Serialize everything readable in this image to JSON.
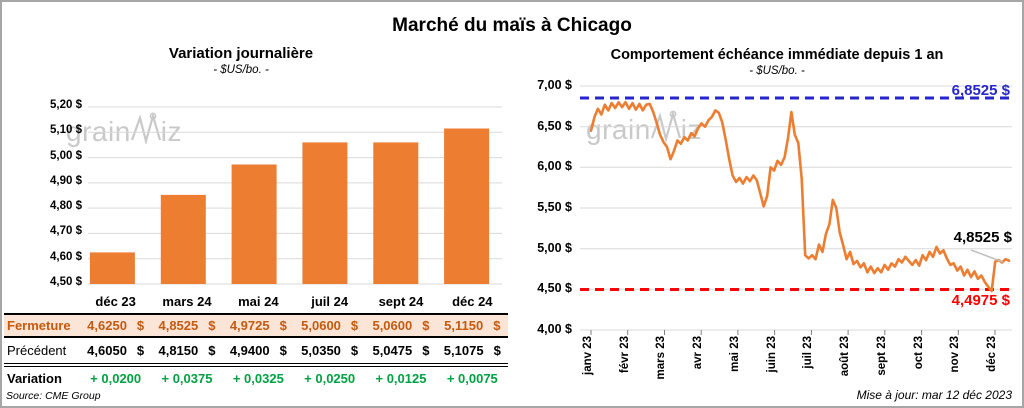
{
  "page_title": "Marché du maïs à Chicago",
  "watermark": "grainwiz",
  "colors": {
    "accent_orange": "#ED7D31",
    "fermeture_text": "#C55A11",
    "fermeture_bg": "#FBE5D6",
    "variation_green": "#00A142",
    "high_line_blue": "#2626CC",
    "low_line_red": "#FF0000",
    "grid_gray": "#D9D9D9",
    "watermark_gray": "#C9C9C9",
    "border_gray": "#A6A6A6"
  },
  "chart_data": [
    {
      "type": "bar",
      "title": "Variation journalière",
      "subtitle": "- $US/bo. -",
      "categories": [
        "déc 23",
        "mars 24",
        "mai 24",
        "juil 24",
        "sept 24",
        "déc 24"
      ],
      "values": [
        4.625,
        4.8525,
        4.9725,
        5.06,
        5.06,
        5.115
      ],
      "ylim": [
        4.5,
        5.2
      ],
      "ytick_values": [
        5.2,
        5.1,
        5.0,
        4.9,
        4.8,
        4.7,
        4.6,
        4.5
      ],
      "ytick_labels": [
        "5,20 $",
        "5,10 $",
        "5,00 $",
        "4,90 $",
        "4,80 $",
        "4,70 $",
        "4,60 $",
        "4,50 $"
      ],
      "bar_color": "#ED7D31",
      "grid": true,
      "legend": "none"
    },
    {
      "type": "line",
      "title": "Comportement échéance immédiate depuis 1 an",
      "subtitle": "- $US/bo. -",
      "x_categories": [
        "janv 23",
        "févr 23",
        "mars 23",
        "avr 23",
        "mai 23",
        "juin 23",
        "juil 23",
        "août 23",
        "sept 23",
        "oct 23",
        "nov 23",
        "déc 23"
      ],
      "values": [
        6.45,
        6.62,
        6.72,
        6.65,
        6.77,
        6.7,
        6.79,
        6.73,
        6.8,
        6.74,
        6.8,
        6.72,
        6.79,
        6.71,
        6.78,
        6.7,
        6.77,
        6.78,
        6.68,
        6.55,
        6.4,
        6.31,
        6.25,
        6.1,
        6.2,
        6.33,
        6.29,
        6.37,
        6.33,
        6.42,
        6.38,
        6.48,
        6.54,
        6.5,
        6.58,
        6.62,
        6.7,
        6.67,
        6.55,
        6.34,
        6.1,
        5.9,
        5.82,
        5.87,
        5.8,
        5.88,
        5.83,
        5.9,
        5.84,
        5.68,
        5.52,
        5.65,
        6.0,
        5.96,
        6.08,
        6.03,
        6.12,
        6.35,
        6.68,
        6.4,
        6.3,
        5.86,
        4.92,
        4.88,
        4.92,
        4.87,
        5.05,
        4.96,
        5.18,
        5.3,
        5.6,
        5.5,
        5.2,
        5.04,
        4.87,
        4.96,
        4.81,
        4.85,
        4.77,
        4.82,
        4.71,
        4.78,
        4.7,
        4.76,
        4.71,
        4.8,
        4.74,
        4.82,
        4.78,
        4.87,
        4.83,
        4.9,
        4.85,
        4.8,
        4.86,
        4.79,
        4.92,
        4.86,
        4.96,
        4.9,
        5.02,
        4.94,
        4.98,
        4.88,
        4.8,
        4.82,
        4.73,
        4.78,
        4.67,
        4.74,
        4.65,
        4.72,
        4.63,
        4.67,
        4.59,
        4.53,
        4.48,
        4.84,
        4.86,
        4.83,
        4.87,
        4.8525
      ],
      "ylim": [
        4.0,
        7.0
      ],
      "ytick_values": [
        7.0,
        6.5,
        6.0,
        5.5,
        5.0,
        4.5,
        4.0
      ],
      "ytick_labels": [
        "7,00 $",
        "6,50 $",
        "6,00 $",
        "5,50 $",
        "5,00 $",
        "4,50 $",
        "4,00 $"
      ],
      "line_color": "#ED7D31",
      "grid": true,
      "legend": "none",
      "annotations": {
        "high": {
          "value": 6.8525,
          "label": "6,8525 $",
          "color": "#2626CC",
          "style": "dashed"
        },
        "low": {
          "value": 4.4975,
          "label": "4,4975 $",
          "color": "#FF0000",
          "style": "dashed"
        },
        "last": {
          "value": 4.8525,
          "label": "4,8525 $",
          "color": "#000000"
        }
      }
    }
  ],
  "table": {
    "columns": [
      "déc 23",
      "mars 24",
      "mai 24",
      "juil 24",
      "sept 24",
      "déc 24"
    ],
    "currency": "$",
    "rows": [
      {
        "label": "Fermeture",
        "currency": true,
        "values": [
          "4,6250",
          "4,8525",
          "4,9725",
          "5,0600",
          "5,0600",
          "5,1150"
        ]
      },
      {
        "label": "Précédent",
        "currency": true,
        "values": [
          "4,6050",
          "4,8150",
          "4,9400",
          "5,0350",
          "5,0475",
          "5,1075"
        ]
      },
      {
        "label": "Variation",
        "currency": false,
        "values": [
          "+ 0,0200",
          "+ 0,0375",
          "+ 0,0325",
          "+ 0,0250",
          "+ 0,0125",
          "+ 0,0075"
        ]
      }
    ],
    "source": "Source: CME Group"
  },
  "footer": {
    "updated": "Mise à jour: mar 12 déc 2023"
  }
}
